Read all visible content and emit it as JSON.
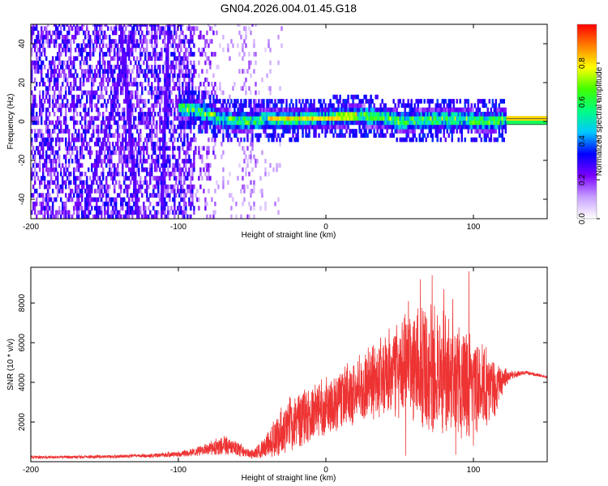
{
  "title": "GN04.2026.004.01.45.G18",
  "chart_data": [
    {
      "type": "heatmap",
      "xlabel": "Height of straight line (km)",
      "ylabel": "Frequency (Hz)",
      "xlim": [
        -200,
        150
      ],
      "ylim": [
        -50,
        50
      ],
      "xticks": [
        -200,
        -100,
        0,
        100
      ],
      "yticks": [
        -40,
        -20,
        0,
        20,
        40
      ],
      "colorbar": {
        "label": "Normalized spectral amplitude",
        "range": [
          0,
          1
        ],
        "ticks": [
          "0.0",
          "0.2",
          "0.4",
          "0.6",
          "0.8"
        ],
        "colors": [
          "#ffffff",
          "#c8a0ff",
          "#7a00ff",
          "#0000ff",
          "#00c8ff",
          "#00ff80",
          "#40ff00",
          "#ffff00",
          "#ff8000",
          "#ff0000"
        ]
      },
      "ridge": [
        {
          "x": -100,
          "y": 6
        },
        {
          "x": -90,
          "y": 5
        },
        {
          "x": -80,
          "y": 3
        },
        {
          "x": -70,
          "y": 0
        },
        {
          "x": -60,
          "y": -1
        },
        {
          "x": -40,
          "y": 0
        },
        {
          "x": -20,
          "y": 0
        },
        {
          "x": 0,
          "y": 1
        },
        {
          "x": 20,
          "y": 2
        },
        {
          "x": 40,
          "y": 1
        },
        {
          "x": 50,
          "y": -1
        },
        {
          "x": 70,
          "y": 0
        },
        {
          "x": 90,
          "y": 0
        },
        {
          "x": 110,
          "y": -1
        },
        {
          "x": 120,
          "y": 0
        },
        {
          "x": 150,
          "y": 0
        }
      ]
    },
    {
      "type": "line",
      "xlabel": "Height of straight line (km)",
      "ylabel": "SNR (10 * v/v)",
      "xlim": [
        -200,
        150
      ],
      "ylim": [
        0,
        9800
      ],
      "xticks": [
        -200,
        -100,
        0,
        100
      ],
      "yticks": [
        2000,
        4000,
        6000,
        8000
      ],
      "color": "#ee3333",
      "envelope": [
        {
          "x": -200,
          "mean": 220,
          "amp": 80
        },
        {
          "x": -150,
          "mean": 250,
          "amp": 80
        },
        {
          "x": -120,
          "mean": 300,
          "amp": 100
        },
        {
          "x": -100,
          "mean": 380,
          "amp": 150
        },
        {
          "x": -85,
          "mean": 550,
          "amp": 250
        },
        {
          "x": -70,
          "mean": 850,
          "amp": 500
        },
        {
          "x": -62,
          "mean": 700,
          "amp": 400
        },
        {
          "x": -50,
          "mean": 350,
          "amp": 250
        },
        {
          "x": -40,
          "mean": 800,
          "amp": 600
        },
        {
          "x": -30,
          "mean": 1600,
          "amp": 1300
        },
        {
          "x": -20,
          "mean": 2100,
          "amp": 1500
        },
        {
          "x": -10,
          "mean": 2500,
          "amp": 1500
        },
        {
          "x": 0,
          "mean": 2800,
          "amp": 1500
        },
        {
          "x": 10,
          "mean": 3100,
          "amp": 1600
        },
        {
          "x": 20,
          "mean": 3600,
          "amp": 1800
        },
        {
          "x": 30,
          "mean": 3900,
          "amp": 2000
        },
        {
          "x": 40,
          "mean": 4300,
          "amp": 2300
        },
        {
          "x": 50,
          "mean": 4600,
          "amp": 2600
        },
        {
          "x": 60,
          "mean": 4900,
          "amp": 3000
        },
        {
          "x": 70,
          "mean": 4800,
          "amp": 3300
        },
        {
          "x": 80,
          "mean": 4300,
          "amp": 3300
        },
        {
          "x": 90,
          "mean": 4100,
          "amp": 3000
        },
        {
          "x": 100,
          "mean": 3900,
          "amp": 2600
        },
        {
          "x": 110,
          "mean": 3700,
          "amp": 2000
        },
        {
          "x": 115,
          "mean": 3700,
          "amp": 1400
        },
        {
          "x": 120,
          "mean": 4100,
          "amp": 700
        },
        {
          "x": 125,
          "mean": 4350,
          "amp": 250
        },
        {
          "x": 135,
          "mean": 4500,
          "amp": 100
        },
        {
          "x": 145,
          "mean": 4350,
          "amp": 80
        },
        {
          "x": 150,
          "mean": 4250,
          "amp": 60
        }
      ],
      "peaks": [
        {
          "x": 64,
          "y": 9200
        },
        {
          "x": 72,
          "y": 9400
        },
        {
          "x": 80,
          "y": 8700
        },
        {
          "x": 97,
          "y": 9600
        },
        {
          "x": 86,
          "y": 8200
        },
        {
          "x": 56,
          "y": 8100
        },
        {
          "x": 54,
          "y": 300
        },
        {
          "x": 88,
          "y": 350
        },
        {
          "x": 100,
          "y": 800
        }
      ]
    }
  ]
}
